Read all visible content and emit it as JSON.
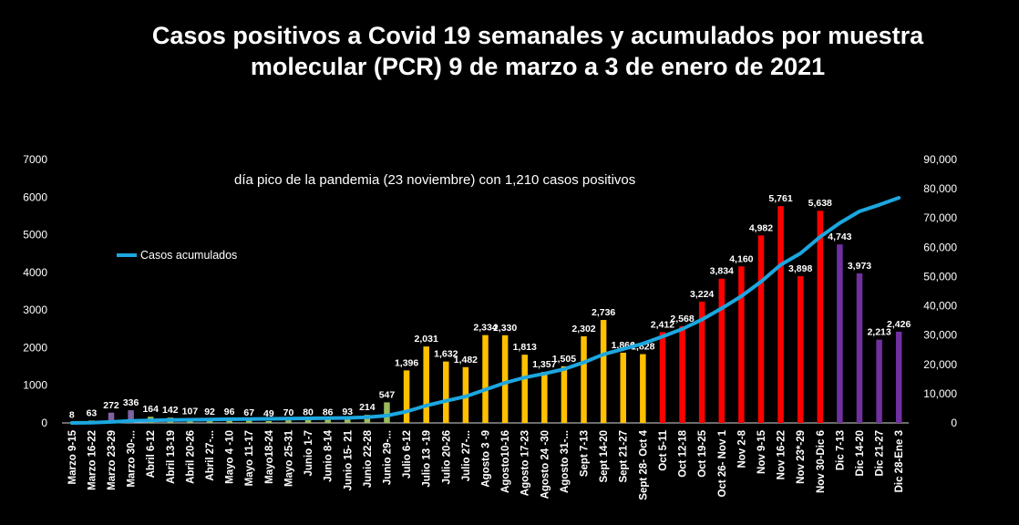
{
  "chart_data": {
    "type": "bar",
    "title_line1": "Casos positivos a Covid 19 semanales y acumulados por muestra",
    "title_line2": "molecular (PCR) 9 de marzo a 3 de enero de 2021",
    "annotation": "día pico de la pandemia (23 noviembre) con 1,210 casos positivos",
    "legend": "Casos acumulados",
    "y_left": {
      "min": 0,
      "max": 7000,
      "ticks": [
        "0",
        "1000",
        "2000",
        "3000",
        "4000",
        "5000",
        "6000",
        "7000"
      ]
    },
    "y_right": {
      "min": 0,
      "max": 90000,
      "ticks": [
        "0",
        "10,000",
        "20,000",
        "30,000",
        "40,000",
        "50,000",
        "60,000",
        "70,000",
        "80,000",
        "90,000"
      ]
    },
    "categories": [
      "Marzo 9-15",
      "Marzo 16-22",
      "Marzo 23-29",
      "Marzo 30-...",
      "Abril 6-12",
      "Abril 13-19",
      "Abril 20-26",
      "Abril 27-...",
      "Mayo 4 -10",
      "Mayo 11-17",
      "Mayo18-24",
      "Mayo 25-31",
      "Junio 1-7",
      "Junio 8-14",
      "Junio 15- 21",
      "Junio 22-28",
      "Junio 29-...",
      "Julio 6-12",
      "Julio 13 -19",
      "Julio 20-26",
      "Julio 27-...",
      "Agosto 3 -9",
      "Agosto10-16",
      "Agosto 17-23",
      "Agosto 24 -30",
      "Agosto 31-...",
      "Sept 7-13",
      "Sept 14-20",
      "Sept 21-27",
      "Sept 28- Oct 4",
      "Oct 5-11",
      "Oct 12-18",
      "Oct 19-25",
      "Oct 26- Nov 1",
      "Nov 2-8",
      "Nov 9-15",
      "Nov 16-22",
      "Nov 23*-29",
      "Nov 30-Dic 6",
      "Dic 7-13",
      "Dic 14-20",
      "Dic 21-27",
      "Dic 28-Ene 3"
    ],
    "weekly": [
      8,
      63,
      272,
      336,
      164,
      142,
      107,
      92,
      96,
      67,
      49,
      70,
      80,
      86,
      93,
      214,
      547,
      1396,
      2031,
      1632,
      1482,
      2334,
      2330,
      1813,
      1357,
      1505,
      2302,
      2736,
      1866,
      1828,
      2412,
      2568,
      3224,
      3834,
      4160,
      4982,
      5761,
      3898,
      5638,
      4743,
      3973,
      2213,
      2426
    ],
    "weekly_labels": [
      "8",
      "63",
      "272",
      "336",
      "164",
      "142",
      "107",
      "92",
      "96",
      "67",
      "49",
      "70",
      "80",
      "86",
      "93",
      "214",
      "547",
      "1,396",
      "2,031",
      "1,632",
      "1,482",
      "2,334",
      "2,330",
      "1,813",
      "1,357",
      "1,505",
      "2,302",
      "2,736",
      "1,866",
      "1,828",
      "2,412",
      "2,568",
      "3,224",
      "3,834",
      "4,160",
      "4,982",
      "5,761",
      "3,898",
      "5,638",
      "4,743",
      "3,973",
      "2,213",
      "2,426"
    ],
    "cumulative": [
      8,
      71,
      343,
      679,
      843,
      985,
      1092,
      1184,
      1280,
      1347,
      1396,
      1466,
      1546,
      1632,
      1725,
      1939,
      2486,
      3882,
      5913,
      7545,
      9027,
      11361,
      13691,
      15504,
      16861,
      18366,
      20668,
      23404,
      25270,
      27098,
      29510,
      32078,
      35302,
      39136,
      43296,
      48278,
      54039,
      57937,
      63575,
      68318,
      72291,
      74504,
      76930
    ],
    "bar_colors": [
      "#9bbb59",
      "#9bbb59",
      "#8064a2",
      "#8064a2",
      "#9bbb59",
      "#9bbb59",
      "#9bbb59",
      "#9bbb59",
      "#9bbb59",
      "#9bbb59",
      "#9bbb59",
      "#9bbb59",
      "#9bbb59",
      "#9bbb59",
      "#9bbb59",
      "#9bbb59",
      "#9bbb59",
      "#ffc000",
      "#ffc000",
      "#ffc000",
      "#ffc000",
      "#ffc000",
      "#ffc000",
      "#ffc000",
      "#ffc000",
      "#ffc000",
      "#ffc000",
      "#ffc000",
      "#ffc000",
      "#ffc000",
      "#ff0000",
      "#ff0000",
      "#ff0000",
      "#ff0000",
      "#ff0000",
      "#ff0000",
      "#ff0000",
      "#ff0000",
      "#ff0000",
      "#7030a0",
      "#7030a0",
      "#7030a0",
      "#7030a0"
    ],
    "line_color": "#1ca7e0",
    "text_color": "#ffffff",
    "background": "#000000"
  }
}
